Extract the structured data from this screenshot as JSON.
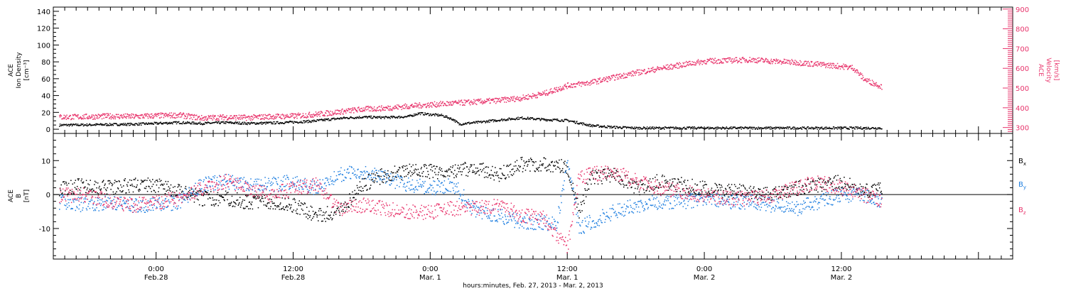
{
  "colors": {
    "black": "#000000",
    "velocity": "#e8336b",
    "by": "#1f7fe0",
    "bz": "#e8336b",
    "axis": "#000000"
  },
  "chart_data": [
    {
      "type": "scatter",
      "panel": "density-velocity",
      "ylabel": [
        "ACE",
        "Ion Density",
        "[cm⁻³]"
      ],
      "ylim": [
        -5,
        145
      ],
      "yticks": [
        "0",
        "20",
        "40",
        "60",
        "80",
        "100",
        "120",
        "140"
      ],
      "y2label": [
        "ACE",
        "Velocity",
        "[km/s]"
      ],
      "y2lim": [
        270,
        910
      ],
      "y2ticks": [
        "300",
        "400",
        "500",
        "600",
        "700",
        "800",
        "900"
      ],
      "series": [
        {
          "color": "#000000",
          "key": "density",
          "x": [
            -8.5,
            -6,
            -4,
            -2,
            0,
            2,
            4,
            6,
            8,
            10,
            12,
            13.5,
            15,
            16.5,
            18,
            20,
            22,
            23,
            24,
            25,
            26,
            26.5,
            27,
            28,
            30,
            32,
            34,
            36,
            38,
            40,
            42,
            44,
            46,
            48,
            50,
            52,
            54,
            56,
            58,
            60,
            62,
            63.5
          ],
          "values": [
            5.5,
            5.8,
            6.2,
            6.5,
            7.5,
            8.5,
            7.5,
            8.5,
            7.5,
            8,
            9,
            10,
            12,
            14,
            15,
            14.5,
            15.5,
            19.5,
            18,
            17,
            12,
            6.5,
            7.5,
            8.5,
            11.5,
            14,
            12,
            11,
            5,
            3,
            2,
            2,
            2,
            2,
            2,
            2,
            2,
            2,
            2,
            2,
            2,
            2
          ]
        },
        {
          "color": "#e8336b",
          "key": "velocity",
          "x": [
            -8.5,
            -6,
            -4,
            -2,
            0,
            2,
            4,
            6,
            8,
            10,
            12,
            13.5,
            15,
            16.5,
            18,
            20,
            22,
            24,
            26,
            28,
            30,
            32,
            34,
            36,
            38,
            40,
            42,
            44,
            46,
            48,
            50,
            52,
            54,
            56,
            58,
            60,
            61,
            62,
            63.5
          ],
          "values": [
            355,
            357,
            360,
            358,
            362,
            365,
            350,
            355,
            352,
            358,
            360,
            367,
            375,
            385,
            395,
            400,
            410,
            418,
            425,
            432,
            440,
            452,
            475,
            515,
            530,
            555,
            580,
            600,
            620,
            638,
            642,
            646,
            638,
            632,
            622,
            612,
            605,
            545,
            510
          ]
        }
      ]
    },
    {
      "type": "scatter",
      "panel": "magnetic-field",
      "ylabel": [
        "ACE",
        "B",
        "[nT]"
      ],
      "ylim": [
        -19,
        18
      ],
      "yticks": [
        "-10",
        "0",
        "10"
      ],
      "legend_position": "right",
      "xlim": [
        -9,
        75
      ],
      "xticks": [
        {
          "time": "0:00",
          "date": "Feb.28"
        },
        {
          "time": "12:00",
          "date": "Feb.28"
        },
        {
          "time": "0:00",
          "date": "Mar. 1"
        },
        {
          "time": "12:00",
          "date": "Mar. 1"
        },
        {
          "time": "0:00",
          "date": "Mar. 2"
        },
        {
          "time": "12:00",
          "date": "Mar. 2"
        }
      ],
      "xlabel": "hours:minutes, Feb. 27, 2013 - Mar.  2, 2013",
      "series": [
        {
          "name": "Bx",
          "color": "#000000",
          "x": [
            -8.5,
            -6,
            -4,
            -2,
            0,
            2,
            4,
            6,
            8,
            10,
            12,
            14,
            16,
            18,
            20,
            22,
            24,
            26,
            28,
            30,
            32,
            34,
            36,
            37,
            38,
            40,
            42,
            44,
            46,
            48,
            50,
            52,
            54,
            56,
            58,
            60,
            62,
            63.5
          ],
          "values": [
            2,
            3,
            2,
            3,
            3,
            1,
            -1,
            -1,
            -2,
            -2,
            -3,
            -6,
            -5,
            3,
            6,
            7,
            7,
            7,
            8,
            6,
            9,
            9,
            8,
            -5,
            5,
            6,
            2,
            4,
            3,
            2,
            1,
            1,
            0,
            2,
            3,
            4,
            1,
            2
          ]
        },
        {
          "name": "By",
          "color": "#1f7fe0",
          "x": [
            -8.5,
            -6,
            -4,
            -2,
            0,
            2,
            4,
            6,
            8,
            10,
            12,
            14,
            16,
            18,
            20,
            22,
            24,
            26,
            28,
            30,
            32,
            34,
            35,
            36,
            37,
            38,
            40,
            42,
            44,
            46,
            48,
            50,
            52,
            54,
            56,
            58,
            60,
            62,
            63.5
          ],
          "values": [
            -2,
            -3,
            -2,
            -3,
            -3,
            -2,
            3,
            4,
            3,
            3,
            4,
            2,
            6,
            7,
            5,
            3,
            2,
            3,
            -5,
            -6,
            -8,
            -8,
            -9,
            10,
            -10,
            -8,
            -5,
            -3,
            -2,
            -2,
            -1,
            -2,
            -2,
            -3,
            -4,
            -2,
            0,
            0,
            -2
          ]
        },
        {
          "name": "Bz",
          "color": "#e8336b",
          "x": [
            -8.5,
            -6,
            -4,
            -2,
            0,
            2,
            4,
            6,
            8,
            10,
            12,
            14,
            16,
            18,
            20,
            22,
            24,
            26,
            28,
            30,
            32,
            34,
            35,
            36,
            37,
            38,
            40,
            42,
            44,
            46,
            48,
            50,
            52,
            54,
            56,
            58,
            60,
            62,
            63.5
          ],
          "values": [
            0,
            0,
            -2,
            -3,
            -2,
            -1,
            2,
            4,
            2,
            0,
            2,
            3,
            -4,
            -3,
            -4,
            -5,
            -5,
            -4,
            -4,
            -3,
            -6,
            -7,
            -12,
            -15,
            5,
            6,
            7,
            4,
            2,
            1,
            0,
            -1,
            -1,
            0,
            2,
            4,
            2,
            0,
            -2
          ]
        }
      ],
      "legend": [
        {
          "main": "B",
          "sub": "x",
          "color": "#000000"
        },
        {
          "main": "B",
          "sub": "y",
          "color": "#1f7fe0"
        },
        {
          "main": "B",
          "sub": "z",
          "color": "#e8336b"
        }
      ]
    }
  ]
}
